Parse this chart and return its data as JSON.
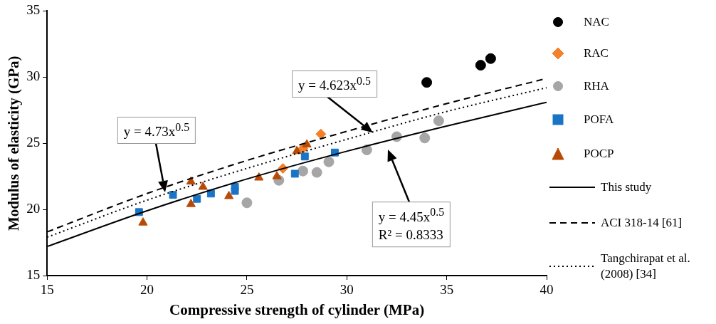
{
  "chart_data": {
    "type": "scatter",
    "xlabel": "Compressive strength of cylinder (MPa)",
    "ylabel": "Modulus of elasticity (GPa)",
    "xlim": [
      15,
      40
    ],
    "xticks": [
      15,
      20,
      25,
      30,
      35,
      40
    ],
    "ylim": [
      15,
      35
    ],
    "yticks": [
      15,
      20,
      25,
      30,
      35
    ],
    "grid": false,
    "legend": "right",
    "series": [
      {
        "name": "NAC",
        "marker": "circle",
        "color": "#000000",
        "x": [
          34.0,
          36.7,
          37.2
        ],
        "values": [
          29.6,
          30.9,
          31.4
        ]
      },
      {
        "name": "RAC",
        "marker": "diamond",
        "color": "#f4812a",
        "x": [
          26.8,
          27.8,
          28.7
        ],
        "values": [
          23.1,
          24.6,
          25.7
        ]
      },
      {
        "name": "RHA",
        "marker": "circle",
        "color": "#a6a6a6",
        "x": [
          25.0,
          26.6,
          27.8,
          28.5,
          29.1,
          31.0,
          32.5,
          33.9,
          34.6
        ],
        "values": [
          20.5,
          22.2,
          22.9,
          22.8,
          23.6,
          24.5,
          25.5,
          25.4,
          26.7
        ]
      },
      {
        "name": "POFA",
        "marker": "square",
        "color": "#1a74c6",
        "x": [
          19.6,
          21.3,
          22.5,
          23.2,
          24.4,
          24.4,
          27.4,
          27.9,
          29.4
        ],
        "values": [
          19.8,
          21.1,
          20.8,
          21.2,
          21.4,
          21.7,
          22.7,
          24.0,
          24.3
        ]
      },
      {
        "name": "POCP",
        "marker": "triangle",
        "color": "#b84a05",
        "x": [
          19.8,
          22.2,
          22.2,
          22.8,
          24.1,
          25.6,
          26.5,
          27.5,
          28.0
        ],
        "values": [
          19.0,
          22.1,
          20.4,
          21.7,
          21.0,
          22.4,
          22.5,
          24.4,
          24.9
        ]
      },
      {
        "name": "This study",
        "type": "line",
        "marker": "none",
        "line_style": "solid",
        "color": "#000000",
        "x": [
          15,
          20,
          25,
          30,
          35,
          40
        ],
        "values": [
          17.2,
          19.9,
          22.3,
          24.4,
          26.3,
          28.1
        ]
      },
      {
        "name": "ACI 318-14 [61]",
        "type": "line",
        "marker": "none",
        "line_style": "dashed",
        "color": "#000000",
        "x": [
          15,
          20,
          25,
          30,
          35,
          40
        ],
        "values": [
          18.3,
          21.2,
          23.7,
          25.9,
          28.0,
          29.9
        ]
      },
      {
        "name": "Tangchirapat et al. (2008) [34]",
        "type": "line",
        "marker": "none",
        "line_style": "dotted",
        "color": "#000000",
        "x": [
          15,
          20,
          25,
          30,
          35,
          40
        ],
        "values": [
          17.9,
          20.7,
          23.1,
          25.3,
          27.4,
          29.2
        ]
      }
    ],
    "annotations": [
      "y = 4.73x$^{0.5}$",
      {
        "text": "y = 4.623x$^{0.5}$",
        "x": 31.3,
        "y": 25.8
      },
      "y = 4.45x$^{0.5}$\nR² = 0.8333"
    ]
  }
}
